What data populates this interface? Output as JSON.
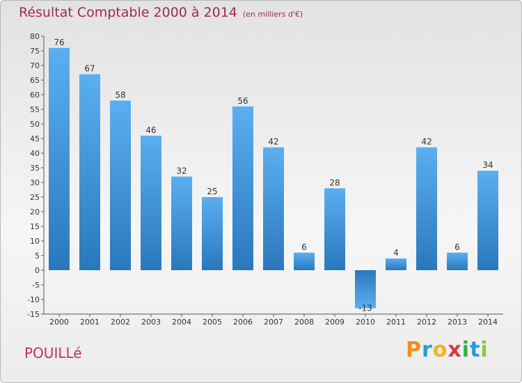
{
  "chart_data": {
    "type": "bar",
    "title": "Résultat Comptable 2000 à 2014",
    "subtitle": "(en milliers d'€)",
    "categories": [
      "2000",
      "2001",
      "2002",
      "2003",
      "2004",
      "2005",
      "2006",
      "2007",
      "2008",
      "2009",
      "2010",
      "2011",
      "2012",
      "2013",
      "2014"
    ],
    "values": [
      76,
      67,
      58,
      46,
      32,
      25,
      56,
      42,
      6,
      28,
      -13,
      4,
      42,
      6,
      34
    ],
    "ylim": [
      -15,
      80
    ],
    "ytick_step": 5,
    "xlabel": "",
    "ylabel": "",
    "grid": false,
    "bar_color": "#3a8ad4"
  },
  "commune": "POUILLé",
  "logo": {
    "letters": [
      "P",
      "r",
      "o",
      "x",
      "i",
      "t",
      "i"
    ],
    "colors": [
      "#f28c1e",
      "#2a9ad8",
      "#f0b418",
      "#d83a3a",
      "#3aa84a",
      "#2a9ad8",
      "#8cc63e"
    ]
  }
}
